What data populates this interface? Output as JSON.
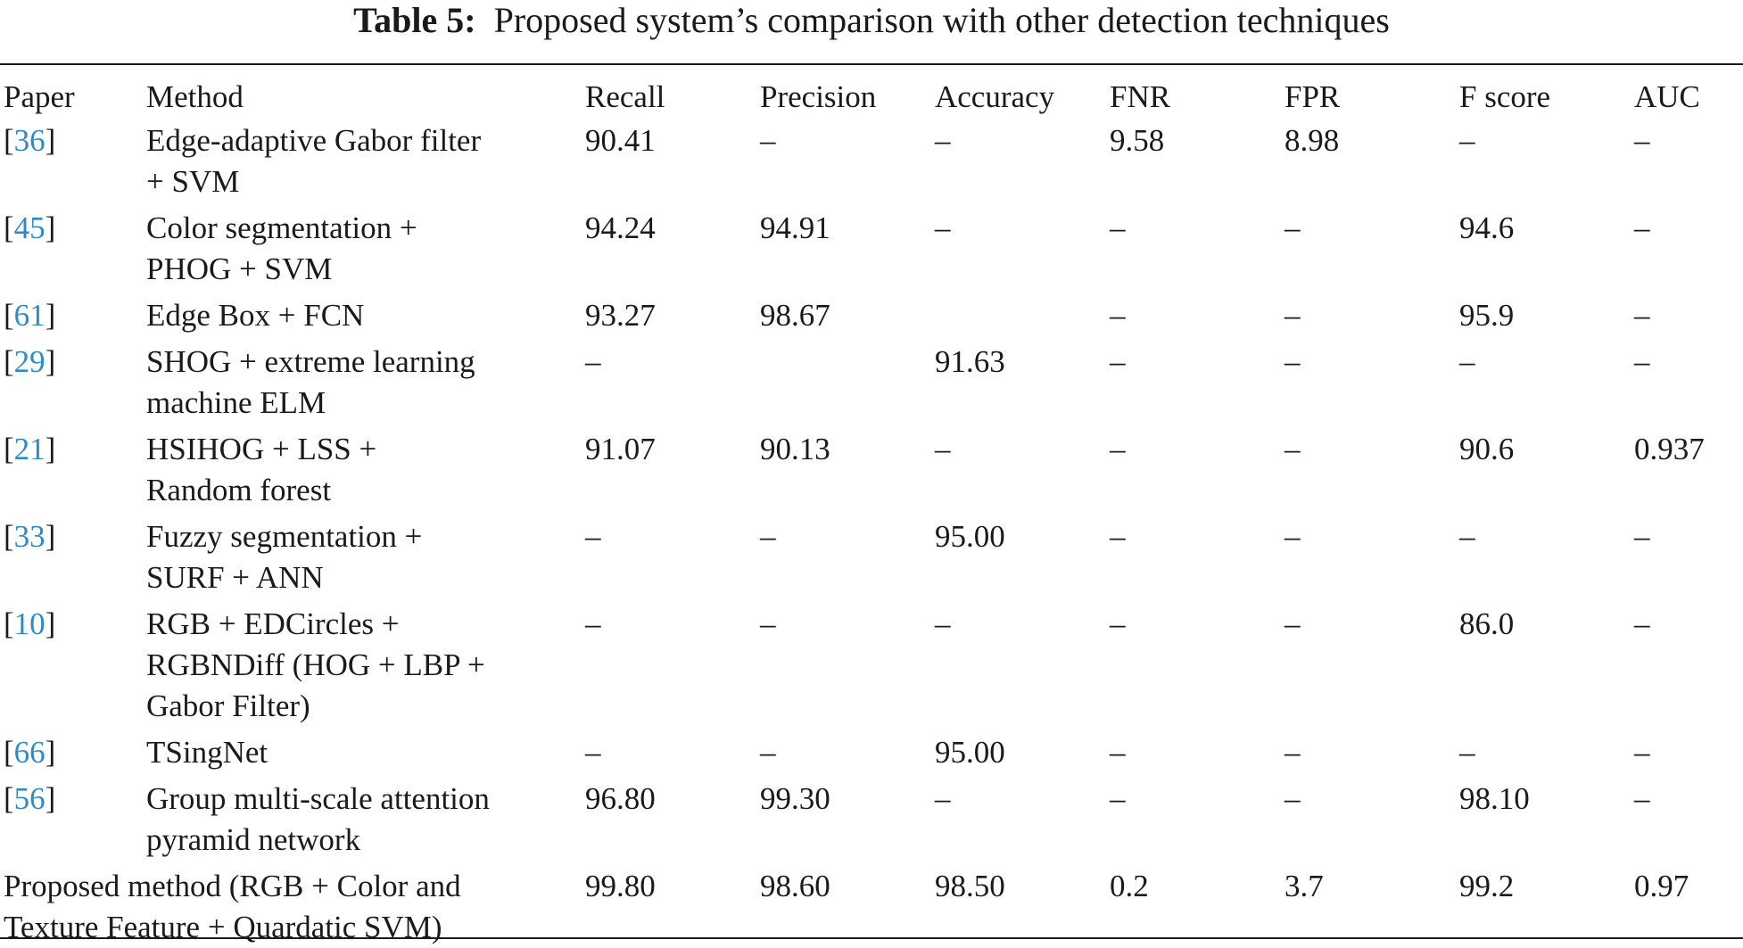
{
  "caption": {
    "label": "Table 5:",
    "text": "Proposed system’s comparison with other detection techniques"
  },
  "header": [
    "Paper",
    "Method",
    "Recall",
    "Precision",
    "Accuracy",
    "FNR",
    "FPR",
    "F score",
    "AUC"
  ],
  "rows": [
    {
      "paper": "36",
      "method": [
        "Edge-adaptive Gabor filter",
        "+ SVM"
      ],
      "recall": "90.41",
      "precision": "–",
      "accuracy": "–",
      "fnr": "9.58",
      "fpr": "8.98",
      "fscore": "–",
      "auc": "–"
    },
    {
      "paper": "45",
      "method": [
        "Color segmentation +",
        "PHOG + SVM"
      ],
      "recall": "94.24",
      "precision": "94.91",
      "accuracy": "–",
      "fnr": "–",
      "fpr": "–",
      "fscore": "94.6",
      "auc": "–"
    },
    {
      "paper": "61",
      "method": [
        "Edge Box + FCN"
      ],
      "recall": "93.27",
      "precision": "98.67",
      "accuracy": "",
      "fnr": "–",
      "fpr": "–",
      "fscore": "95.9",
      "auc": "–"
    },
    {
      "paper": "29",
      "method": [
        "SHOG + extreme learning",
        "machine ELM"
      ],
      "recall": "–",
      "precision": "",
      "accuracy": "91.63",
      "fnr": "–",
      "fpr": "–",
      "fscore": "–",
      "auc": "–"
    },
    {
      "paper": "21",
      "method": [
        "HSIHOG + LSS +",
        "Random forest"
      ],
      "recall": "91.07",
      "precision": "90.13",
      "accuracy": "–",
      "fnr": "–",
      "fpr": "–",
      "fscore": "90.6",
      "auc": "0.937"
    },
    {
      "paper": "33",
      "method": [
        "Fuzzy segmentation +",
        "SURF + ANN"
      ],
      "recall": "–",
      "precision": "–",
      "accuracy": "95.00",
      "fnr": "–",
      "fpr": "–",
      "fscore": "–",
      "auc": "–"
    },
    {
      "paper": "10",
      "method": [
        "RGB + EDCircles +",
        "RGBNDiff (HOG + LBP +",
        "Gabor Filter)"
      ],
      "recall": "–",
      "precision": "–",
      "accuracy": "–",
      "fnr": "–",
      "fpr": "–",
      "fscore": "86.0",
      "auc": "–"
    },
    {
      "paper": "66",
      "method": [
        "TSingNet"
      ],
      "recall": "–",
      "precision": "–",
      "accuracy": "95.00",
      "fnr": "–",
      "fpr": "–",
      "fscore": "–",
      "auc": "–"
    },
    {
      "paper": "56",
      "method": [
        "Group multi-scale attention",
        "pyramid network"
      ],
      "recall": "96.80",
      "precision": "99.30",
      "accuracy": "–",
      "fnr": "–",
      "fpr": "–",
      "fscore": "98.10",
      "auc": "–"
    }
  ],
  "proposed": {
    "method": [
      "Proposed method (RGB + Color and",
      "Texture Feature + Quardatic SVM)"
    ],
    "recall": "99.80",
    "precision": "98.60",
    "accuracy": "98.50",
    "fnr": "0.2",
    "fpr": "3.7",
    "fscore": "99.2",
    "auc": "0.97"
  },
  "colors": {
    "reference_link": "#2e8bcb",
    "text": "#1a1a1a"
  }
}
